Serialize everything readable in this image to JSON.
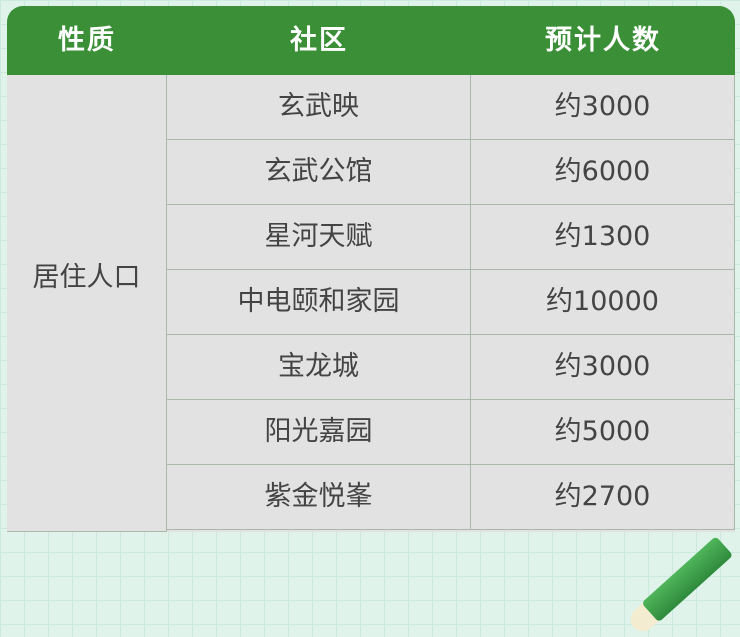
{
  "headers": [
    "性质",
    "社区",
    "预计人数"
  ],
  "category": "居住人口",
  "rows": [
    {
      "community": "玄武映",
      "count": "约3000"
    },
    {
      "community": "玄武公馆",
      "count": "约6000"
    },
    {
      "community": "星河天赋",
      "count": "约1300"
    },
    {
      "community": "中电颐和家园",
      "count": "约10000"
    },
    {
      "community": "宝龙城",
      "count": "约3000"
    },
    {
      "community": "阳光嘉园",
      "count": "约5000"
    },
    {
      "community": "紫金悦峯",
      "count": "约2700"
    }
  ],
  "colors": {
    "header": "#3a8f37",
    "cell": "#e2e2e2",
    "background": "#dff3ea"
  }
}
